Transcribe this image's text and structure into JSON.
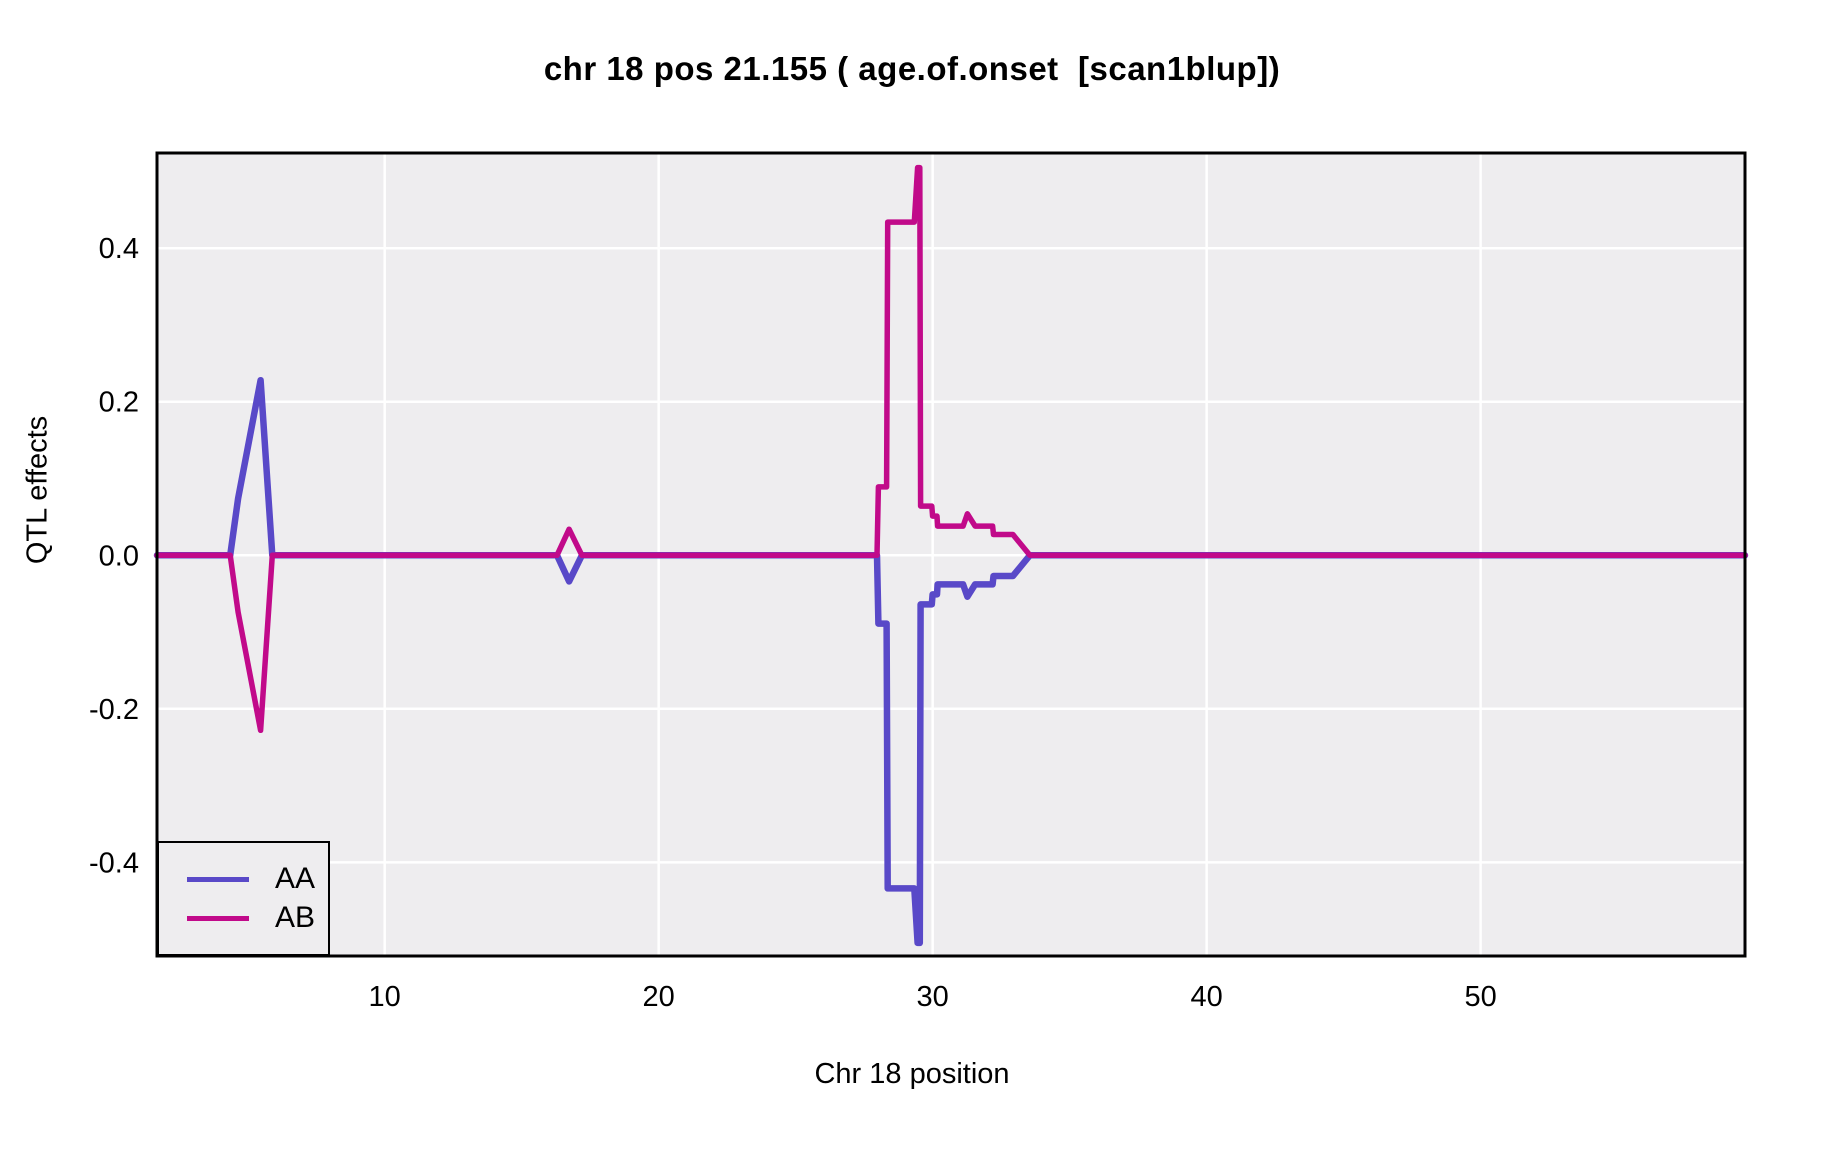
{
  "chart_data": {
    "type": "line",
    "title": "chr 18 pos 21.155 ( age.of.onset  [scan1blup])",
    "xlabel": "Chr 18 position",
    "ylabel": "QTL effects",
    "xlim": [
      1.69,
      59.65
    ],
    "ylim": [
      -0.522,
      0.524
    ],
    "x_ticks": [
      {
        "value": 10,
        "label": "10"
      },
      {
        "value": 20,
        "label": "20"
      },
      {
        "value": 30,
        "label": "30"
      },
      {
        "value": 40,
        "label": "40"
      },
      {
        "value": 50,
        "label": "50"
      }
    ],
    "y_ticks": [
      {
        "value": -0.4,
        "label": "-0.4"
      },
      {
        "value": -0.2,
        "label": "-0.2"
      },
      {
        "value": 0.0,
        "label": "0.0"
      },
      {
        "value": 0.2,
        "label": "0.2"
      },
      {
        "value": 0.4,
        "label": "0.4"
      }
    ],
    "grid": true,
    "panel_background": "#EEEDEF",
    "grid_color": "#FFFFFF",
    "border_color": "#000000",
    "legend_position": "bottom-left",
    "series": [
      {
        "name": "AA",
        "color": "#5949C8",
        "points": [
          [
            1.69,
            0
          ],
          [
            4.36,
            0
          ],
          [
            4.65,
            0.074
          ],
          [
            5.47,
            0.228
          ],
          [
            5.9,
            0
          ],
          [
            16.29,
            0
          ],
          [
            16.73,
            -0.034
          ],
          [
            17.2,
            0
          ],
          [
            27.97,
            0
          ],
          [
            28.02,
            -0.089
          ],
          [
            28.32,
            -0.089
          ],
          [
            28.36,
            -0.434
          ],
          [
            29.33,
            -0.434
          ],
          [
            29.45,
            -0.505
          ],
          [
            29.53,
            -0.505
          ],
          [
            29.56,
            -0.064
          ],
          [
            29.97,
            -0.064
          ],
          [
            30.0,
            -0.051
          ],
          [
            30.16,
            -0.051
          ],
          [
            30.18,
            -0.038
          ],
          [
            31.11,
            -0.038
          ],
          [
            31.27,
            -0.054
          ],
          [
            31.55,
            -0.038
          ],
          [
            32.19,
            -0.038
          ],
          [
            32.22,
            -0.027
          ],
          [
            32.93,
            -0.027
          ],
          [
            33.55,
            0
          ],
          [
            59.65,
            0
          ]
        ]
      },
      {
        "name": "AB",
        "color": "#C10A8A",
        "points": [
          [
            1.69,
            0
          ],
          [
            4.36,
            0
          ],
          [
            4.65,
            -0.074
          ],
          [
            5.47,
            -0.228
          ],
          [
            5.9,
            0
          ],
          [
            16.29,
            0
          ],
          [
            16.73,
            0.034
          ],
          [
            17.2,
            0
          ],
          [
            27.97,
            0
          ],
          [
            28.02,
            0.089
          ],
          [
            28.32,
            0.089
          ],
          [
            28.36,
            0.434
          ],
          [
            29.33,
            0.434
          ],
          [
            29.45,
            0.505
          ],
          [
            29.53,
            0.505
          ],
          [
            29.56,
            0.064
          ],
          [
            29.97,
            0.064
          ],
          [
            30.0,
            0.051
          ],
          [
            30.16,
            0.051
          ],
          [
            30.18,
            0.038
          ],
          [
            31.11,
            0.038
          ],
          [
            31.27,
            0.054
          ],
          [
            31.55,
            0.038
          ],
          [
            32.19,
            0.038
          ],
          [
            32.22,
            0.027
          ],
          [
            32.93,
            0.027
          ],
          [
            33.55,
            0
          ],
          [
            59.65,
            0
          ]
        ]
      }
    ]
  }
}
